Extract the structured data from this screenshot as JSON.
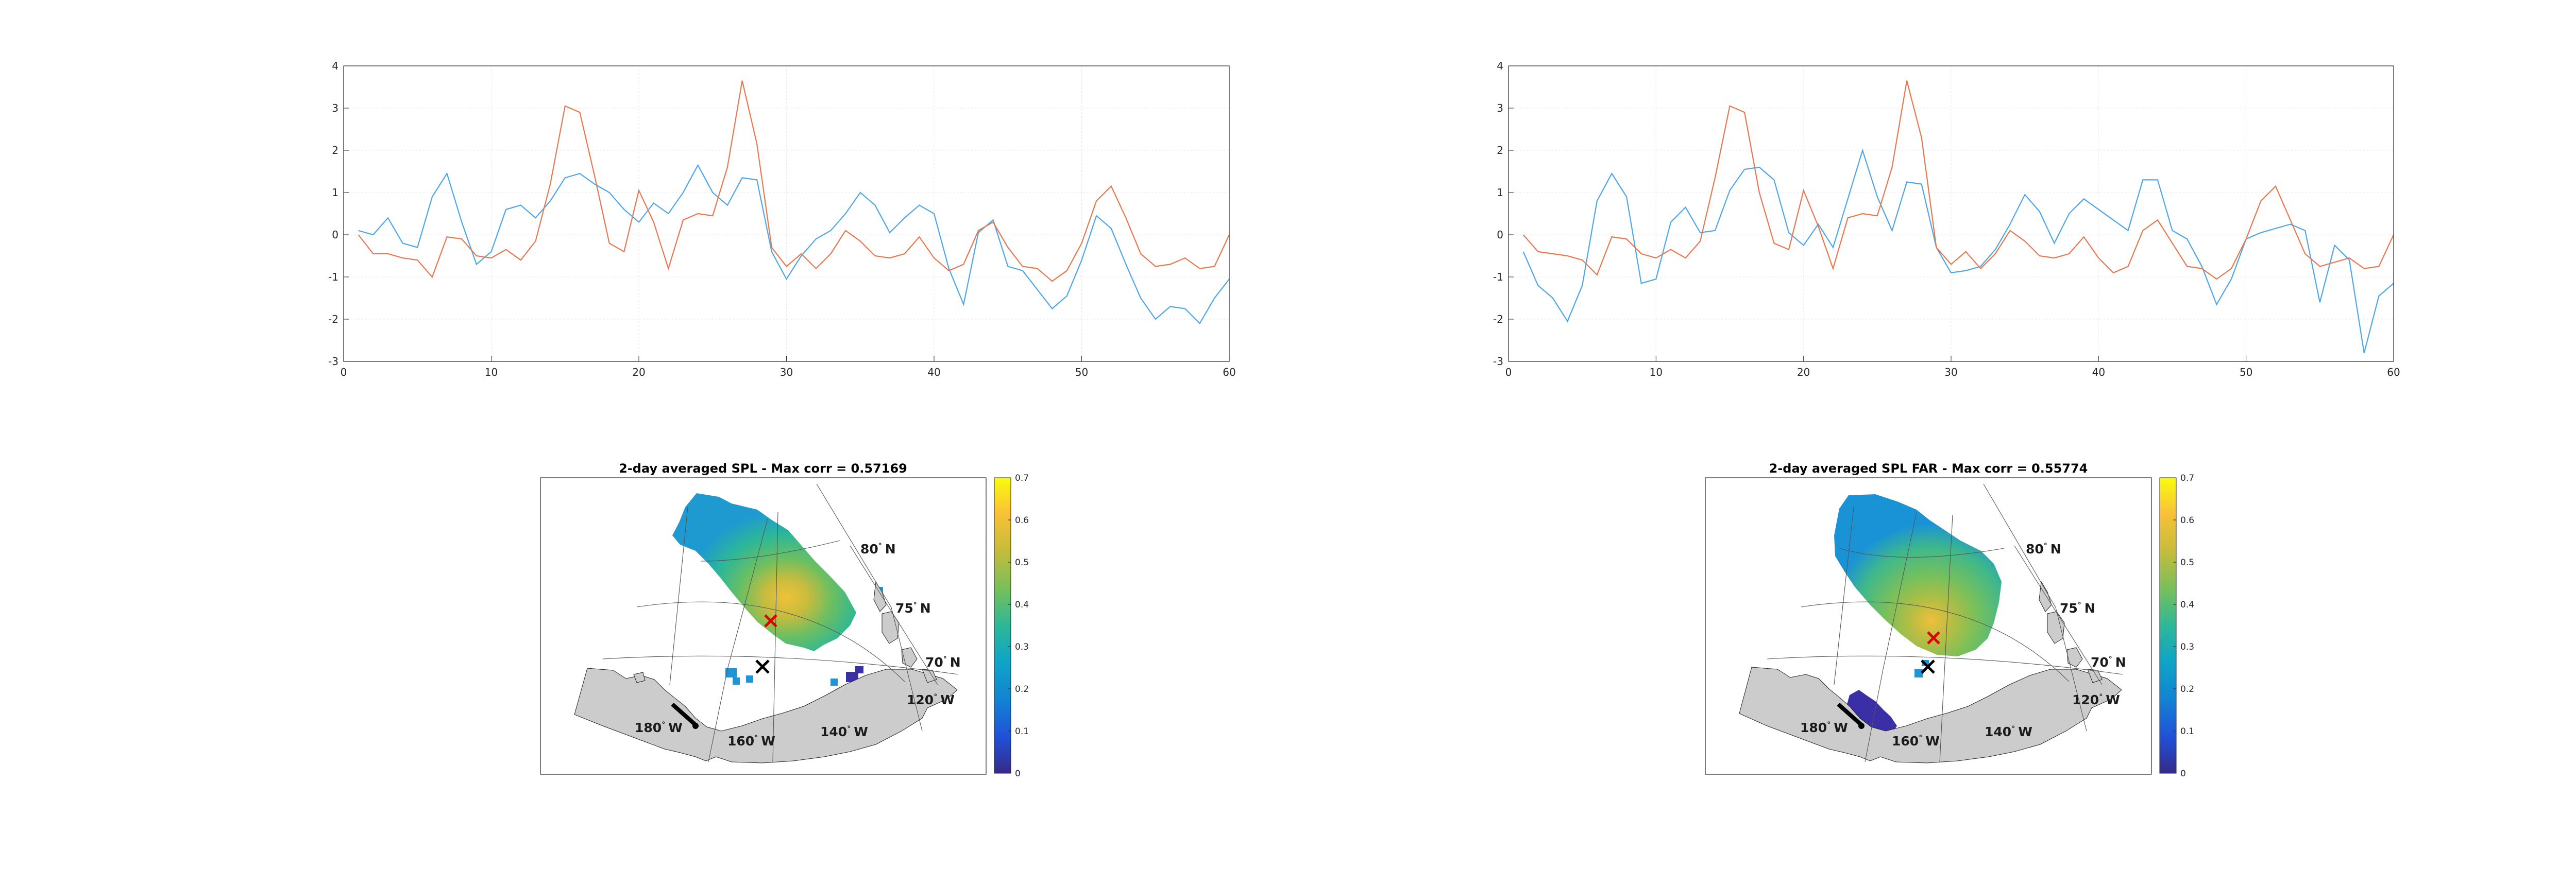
{
  "colors": {
    "series_a": "#0072BD",
    "series_b": "#D95319",
    "land": "#cccccc",
    "axes": "#262626",
    "grid": "#e6e6e6",
    "marker_max": "#e00000",
    "marker_site": "#000000"
  },
  "chart_data": [
    {
      "type": "line",
      "xlim": [
        0,
        60
      ],
      "ylim": [
        -3,
        4
      ],
      "xticks": [
        "0",
        "10",
        "20",
        "30",
        "40",
        "50",
        "60"
      ],
      "yticks": [
        "-3",
        "-2",
        "-1",
        "0",
        "1",
        "2",
        "3",
        "4"
      ],
      "grid": true,
      "x": [
        1,
        2,
        3,
        4,
        5,
        6,
        7,
        8,
        9,
        10,
        11,
        12,
        13,
        14,
        15,
        16,
        17,
        18,
        19,
        20,
        21,
        22,
        23,
        24,
        25,
        26,
        27,
        28,
        29,
        30,
        31,
        32,
        33,
        34,
        35,
        36,
        37,
        38,
        39,
        40,
        41,
        42,
        43,
        44,
        45,
        46,
        47,
        48,
        49,
        50,
        51,
        52,
        53,
        54,
        55,
        56,
        57,
        58,
        59,
        60
      ],
      "series": [
        {
          "color": "#4DA6E8",
          "values": [
            0.1,
            0.0,
            0.4,
            -0.2,
            -0.3,
            0.9,
            1.45,
            0.3,
            -0.7,
            -0.4,
            0.6,
            0.7,
            0.4,
            0.8,
            1.35,
            1.45,
            1.2,
            1.0,
            0.6,
            0.3,
            0.75,
            0.5,
            1.0,
            1.65,
            1.0,
            0.7,
            1.35,
            1.3,
            -0.4,
            -1.05,
            -0.5,
            -0.1,
            0.1,
            0.5,
            1.0,
            0.7,
            0.05,
            0.4,
            0.7,
            0.5,
            -0.8,
            -1.65,
            0.05,
            0.35,
            -0.75,
            -0.85,
            -1.3,
            -1.75,
            -1.45,
            -0.6,
            0.45,
            0.15,
            -0.7,
            -1.5,
            -2.0,
            -1.7,
            -1.75,
            -2.1,
            -1.5,
            -1.05
          ]
        },
        {
          "color": "#E8774F",
          "values": [
            0.0,
            -0.45,
            -0.45,
            -0.55,
            -0.6,
            -1.0,
            -0.05,
            -0.1,
            -0.5,
            -0.55,
            -0.35,
            -0.6,
            -0.15,
            1.2,
            3.05,
            2.9,
            1.4,
            -0.2,
            -0.4,
            1.05,
            0.3,
            -0.8,
            0.35,
            0.5,
            0.45,
            1.6,
            3.65,
            2.15,
            -0.3,
            -0.75,
            -0.45,
            -0.8,
            -0.45,
            0.1,
            -0.15,
            -0.5,
            -0.55,
            -0.45,
            -0.05,
            -0.55,
            -0.85,
            -0.7,
            0.1,
            0.3,
            -0.3,
            -0.75,
            -0.8,
            -1.1,
            -0.85,
            -0.2,
            0.8,
            1.15,
            0.4,
            -0.45,
            -0.75,
            -0.7,
            -0.55,
            -0.8,
            -0.75,
            0.0
          ]
        }
      ]
    },
    {
      "type": "line",
      "xlim": [
        0,
        60
      ],
      "ylim": [
        -3,
        4
      ],
      "xticks": [
        "0",
        "10",
        "20",
        "30",
        "40",
        "50",
        "60"
      ],
      "yticks": [
        "-3",
        "-2",
        "-1",
        "0",
        "1",
        "2",
        "3",
        "4"
      ],
      "grid": true,
      "x": [
        1,
        2,
        3,
        4,
        5,
        6,
        7,
        8,
        9,
        10,
        11,
        12,
        13,
        14,
        15,
        16,
        17,
        18,
        19,
        20,
        21,
        22,
        23,
        24,
        25,
        26,
        27,
        28,
        29,
        30,
        31,
        32,
        33,
        34,
        35,
        36,
        37,
        38,
        39,
        40,
        41,
        42,
        43,
        44,
        45,
        46,
        47,
        48,
        49,
        50,
        51,
        52,
        53,
        54,
        55,
        56,
        57,
        58,
        59,
        60
      ],
      "series": [
        {
          "color": "#4DA6E8",
          "values": [
            -0.4,
            -1.2,
            -1.5,
            -2.05,
            -1.2,
            0.8,
            1.45,
            0.9,
            -1.15,
            -1.05,
            0.3,
            0.65,
            0.05,
            0.1,
            1.05,
            1.55,
            1.6,
            1.3,
            0.05,
            -0.25,
            0.25,
            -0.3,
            0.85,
            2.0,
            0.9,
            0.1,
            1.25,
            1.2,
            -0.3,
            -0.9,
            -0.85,
            -0.75,
            -0.35,
            0.25,
            0.95,
            0.55,
            -0.2,
            0.5,
            0.85,
            0.6,
            0.35,
            0.1,
            1.3,
            1.3,
            0.1,
            -0.1,
            -0.75,
            -1.65,
            -1.05,
            -0.1,
            0.05,
            0.15,
            0.25,
            0.1,
            -1.6,
            -0.25,
            -0.6,
            -2.8,
            -1.45,
            -1.15
          ]
        },
        {
          "color": "#E8774F",
          "values": [
            0.0,
            -0.4,
            -0.45,
            -0.5,
            -0.6,
            -0.95,
            -0.05,
            -0.1,
            -0.45,
            -0.55,
            -0.35,
            -0.55,
            -0.15,
            1.35,
            3.05,
            2.9,
            1.0,
            -0.2,
            -0.35,
            1.05,
            0.2,
            -0.8,
            0.4,
            0.5,
            0.45,
            1.6,
            3.65,
            2.3,
            -0.3,
            -0.7,
            -0.4,
            -0.8,
            -0.45,
            0.1,
            -0.15,
            -0.5,
            -0.55,
            -0.45,
            -0.05,
            -0.55,
            -0.9,
            -0.75,
            0.1,
            0.35,
            -0.2,
            -0.75,
            -0.8,
            -1.05,
            -0.8,
            -0.1,
            0.8,
            1.15,
            0.35,
            -0.45,
            -0.75,
            -0.65,
            -0.55,
            -0.8,
            -0.75,
            0.0
          ]
        }
      ]
    }
  ],
  "maps": [
    {
      "title": "2-day averaged SPL - Max corr = 0.57169",
      "colorbar": {
        "ticks": [
          "0",
          "0.1",
          "0.2",
          "0.3",
          "0.4",
          "0.5",
          "0.6",
          "0.7"
        ]
      },
      "lat_labels": [
        {
          "num": "80",
          "deg": "°",
          "dir": "N"
        },
        {
          "num": "75",
          "deg": "°",
          "dir": "N"
        },
        {
          "num": "70",
          "deg": "°",
          "dir": "N"
        }
      ],
      "lon_labels": [
        {
          "num": "180",
          "deg": "°",
          "dir": "W"
        },
        {
          "num": "160",
          "deg": "°",
          "dir": "W"
        },
        {
          "num": "140",
          "deg": "°",
          "dir": "W"
        },
        {
          "num": "120",
          "deg": "°",
          "dir": "W"
        }
      ],
      "max_corr": 0.57169
    },
    {
      "title": "2-day averaged SPL FAR - Max corr = 0.55774",
      "colorbar": {
        "ticks": [
          "0",
          "0.1",
          "0.2",
          "0.3",
          "0.4",
          "0.5",
          "0.6",
          "0.7"
        ]
      },
      "lat_labels": [
        {
          "num": "80",
          "deg": "°",
          "dir": "N"
        },
        {
          "num": "75",
          "deg": "°",
          "dir": "N"
        },
        {
          "num": "70",
          "deg": "°",
          "dir": "N"
        }
      ],
      "lon_labels": [
        {
          "num": "180",
          "deg": "°",
          "dir": "W"
        },
        {
          "num": "160",
          "deg": "°",
          "dir": "W"
        },
        {
          "num": "140",
          "deg": "°",
          "dir": "W"
        },
        {
          "num": "120",
          "deg": "°",
          "dir": "W"
        }
      ],
      "max_corr": 0.55774
    }
  ]
}
